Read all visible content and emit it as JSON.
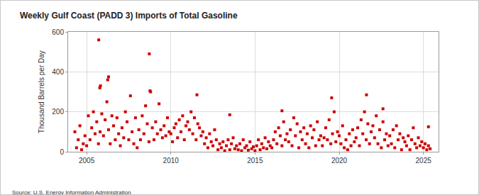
{
  "chart_data": {
    "type": "scatter",
    "title": "Weekly Gulf Coast (PADD 3) Imports of Total Gasoline",
    "y_label": "Thousand Barrels per Day",
    "annotations": [
      "Source: U.S. Energy Information Administration"
    ],
    "color": "#cc0000",
    "marker": "square",
    "grid": true,
    "xlim": [
      2003.9,
      2025.9
    ],
    "xticks": [
      2005,
      2010,
      2015,
      2020,
      2025
    ],
    "ylim": [
      0,
      600
    ],
    "yticks": [
      0,
      200,
      400,
      600
    ],
    "x": [
      2004.3,
      2004.4,
      2004.5,
      2004.6,
      2004.7,
      2004.8,
      2004.9,
      2005,
      2005.1,
      2005.2,
      2005.3,
      2005.4,
      2005.5,
      2005.6,
      2005.7,
      2005.8,
      2005.9,
      2006,
      2006.1,
      2006.2,
      2006.3,
      2006.4,
      2006.5,
      2006.6,
      2006.7,
      2006.8,
      2006.9,
      2007,
      2007.1,
      2007.2,
      2007.3,
      2007.4,
      2007.5,
      2007.6,
      2007.7,
      2007.8,
      2007.9,
      2008,
      2008.1,
      2008.2,
      2008.3,
      2008.4,
      2008.5,
      2008.6,
      2008.7,
      2008.8,
      2008.9,
      2009,
      2009.1,
      2009.2,
      2009.3,
      2009.4,
      2009.5,
      2009.6,
      2009.7,
      2009.8,
      2009.9,
      2010,
      2010.1,
      2010.2,
      2010.3,
      2010.4,
      2010.5,
      2010.6,
      2010.7,
      2010.8,
      2010.9,
      2011,
      2011.1,
      2011.2,
      2011.3,
      2011.4,
      2011.5,
      2011.6,
      2011.7,
      2011.8,
      2011.9,
      2012,
      2012.1,
      2012.2,
      2012.3,
      2012.4,
      2012.5,
      2012.6,
      2012.7,
      2012.8,
      2012.9,
      2013,
      2013.1,
      2013.2,
      2013.3,
      2013.4,
      2013.5,
      2013.6,
      2013.7,
      2013.8,
      2013.9,
      2014,
      2014.1,
      2014.2,
      2014.3,
      2014.4,
      2014.5,
      2014.6,
      2014.7,
      2014.8,
      2014.9,
      2015,
      2015.1,
      2015.2,
      2015.3,
      2015.4,
      2015.5,
      2015.6,
      2015.7,
      2015.8,
      2015.9,
      2016,
      2016.1,
      2016.2,
      2016.3,
      2016.4,
      2016.5,
      2016.6,
      2016.7,
      2016.8,
      2016.9,
      2017,
      2017.1,
      2017.2,
      2017.3,
      2017.4,
      2017.5,
      2017.6,
      2017.7,
      2017.8,
      2017.9,
      2018,
      2018.1,
      2018.2,
      2018.3,
      2018.4,
      2018.5,
      2018.6,
      2018.7,
      2018.8,
      2018.9,
      2019,
      2019.1,
      2019.2,
      2019.3,
      2019.4,
      2019.5,
      2019.6,
      2019.7,
      2019.8,
      2019.9,
      2020,
      2020.1,
      2020.2,
      2020.3,
      2020.4,
      2020.5,
      2020.6,
      2020.7,
      2020.8,
      2020.9,
      2021,
      2021.1,
      2021.2,
      2021.3,
      2021.4,
      2021.5,
      2021.6,
      2021.7,
      2021.8,
      2021.9,
      2022,
      2022.1,
      2022.2,
      2022.3,
      2022.4,
      2022.5,
      2022.6,
      2022.7,
      2022.8,
      2022.9,
      2023,
      2023.1,
      2023.2,
      2023.3,
      2023.4,
      2023.5,
      2023.6,
      2023.7,
      2023.8,
      2023.9,
      2024,
      2024.1,
      2024.2,
      2024.3,
      2024.4,
      2024.5,
      2024.6,
      2024.7,
      2024.8,
      2024.9,
      2025,
      2025.1,
      2025.2,
      2025.3,
      2025.4,
      2005.72,
      2005.78,
      2005.82,
      2006.25,
      2006.3,
      2008.72,
      2008.76,
      2011.55,
      2019.55,
      2021.62,
      2022.6,
      2013.5,
      2016.6,
      2025.3
    ],
    "values": [
      100,
      20,
      60,
      130,
      10,
      40,
      80,
      30,
      180,
      60,
      120,
      200,
      90,
      150,
      40,
      100,
      190,
      80,
      160,
      250,
      110,
      40,
      180,
      130,
      60,
      170,
      90,
      30,
      120,
      70,
      200,
      150,
      60,
      280,
      100,
      40,
      170,
      20,
      110,
      60,
      180,
      90,
      230,
      140,
      50,
      300,
      120,
      60,
      150,
      90,
      240,
      110,
      70,
      130,
      80,
      170,
      100,
      90,
      50,
      120,
      140,
      70,
      160,
      100,
      180,
      60,
      130,
      150,
      110,
      200,
      90,
      170,
      60,
      140,
      120,
      80,
      100,
      40,
      70,
      20,
      90,
      50,
      30,
      110,
      60,
      10,
      40,
      20,
      50,
      5,
      30,
      60,
      10,
      40,
      70,
      15,
      30,
      10,
      40,
      5,
      60,
      20,
      30,
      8,
      50,
      15,
      25,
      5,
      30,
      60,
      10,
      40,
      20,
      70,
      15,
      50,
      30,
      20,
      60,
      100,
      40,
      120,
      80,
      30,
      150,
      60,
      90,
      50,
      110,
      30,
      170,
      80,
      140,
      20,
      100,
      60,
      120,
      40,
      90,
      20,
      130,
      70,
      110,
      30,
      150,
      60,
      80,
      30,
      70,
      120,
      60,
      160,
      40,
      90,
      200,
      50,
      100,
      80,
      40,
      130,
      20,
      60,
      10,
      90,
      30,
      110,
      50,
      70,
      120,
      30,
      160,
      90,
      200,
      60,
      140,
      40,
      100,
      130,
      70,
      180,
      40,
      110,
      20,
      150,
      60,
      90,
      30,
      80,
      40,
      110,
      20,
      130,
      60,
      90,
      10,
      70,
      50,
      30,
      80,
      10,
      60,
      120,
      40,
      20,
      70,
      30,
      50,
      20,
      40,
      10,
      30,
      15,
      560,
      320,
      330,
      360,
      375,
      490,
      305,
      285,
      270,
      285,
      215,
      185,
      205,
      125
    ]
  }
}
